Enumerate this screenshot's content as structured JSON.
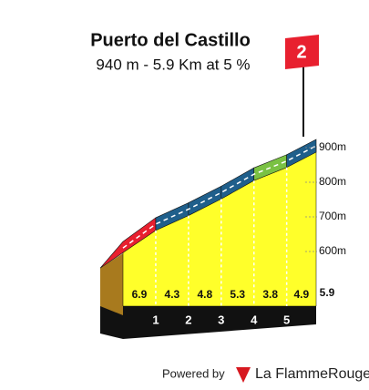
{
  "chart_data": {
    "type": "climb-profile",
    "title": "Puerto del Castillo",
    "subtitle": "940 m - 5.9 Km at 5 %",
    "category": "2",
    "values": [
      6.9,
      4.3,
      4.8,
      5.3,
      3.8,
      4.9
    ],
    "colors": [
      "#e8202f",
      "#1f5f8b",
      "#1f5f8b",
      "#1f5f8b",
      "#7ac143",
      "#1f5f8b"
    ],
    "km_markers": [
      1,
      2,
      3,
      4,
      5
    ],
    "distance": 5.9,
    "yticks": [
      {
        "value": 600,
        "label": "600m"
      },
      {
        "value": 700,
        "label": "700m"
      },
      {
        "value": 800,
        "label": "800m"
      },
      {
        "value": 900,
        "label": "900m"
      }
    ],
    "footer": {
      "powered": "Powered by",
      "brand": "La FlammeRouge"
    }
  }
}
